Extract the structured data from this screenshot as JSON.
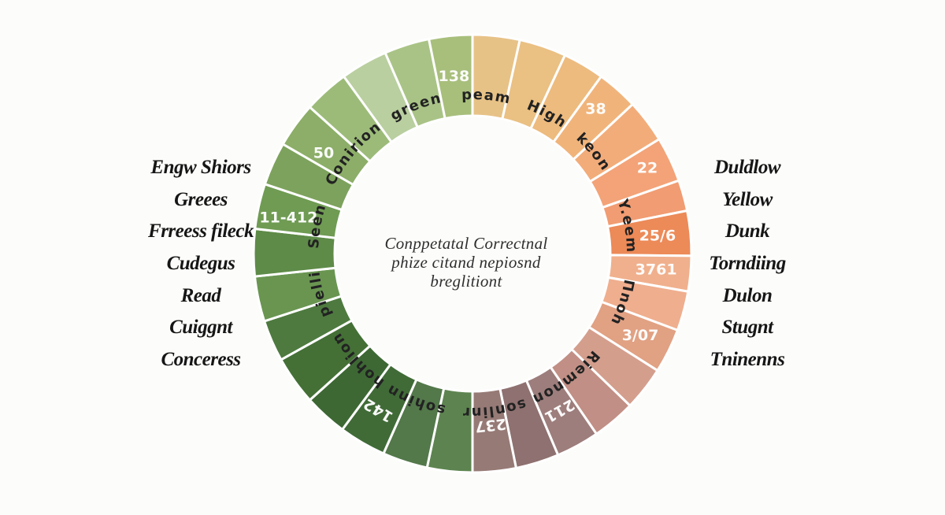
{
  "chart_data": {
    "type": "pie",
    "variant": "donut-color-wheel",
    "legend_position": "none",
    "center_text": [
      "Conppetatal Correctnal",
      "phize citand nepiosnd",
      "breglitiont"
    ],
    "segments": [
      {
        "start": 0,
        "end": 12.5,
        "color": "#e7c287"
      },
      {
        "start": 12.5,
        "end": 25,
        "color": "#eac083"
      },
      {
        "start": 25,
        "end": 36,
        "color": "#edbb7e"
      },
      {
        "start": 36,
        "end": 47,
        "color": "#f0b47b",
        "value": "38",
        "value_angle": 40.5,
        "value_radius": 241,
        "value_rotated": false
      },
      {
        "start": 47,
        "end": 58.5,
        "color": "#f2ac7a"
      },
      {
        "start": 58.5,
        "end": 70.5,
        "color": "#f3a377",
        "value": "22",
        "value_angle": 64,
        "value_radius": 247,
        "value_rotated": false
      },
      {
        "start": 70.5,
        "end": 78.7,
        "color": "#f19c72"
      },
      {
        "start": 78.7,
        "end": 90.6,
        "color": "#ec8a58",
        "value": "25/6",
        "value_angle": 84.5,
        "value_radius": 236,
        "value_rotated": false
      },
      {
        "start": 90.6,
        "end": 100,
        "color": "#f0b08d",
        "value": "3761",
        "value_angle": 95,
        "value_radius": 234,
        "value_rotated": false
      },
      {
        "start": 100,
        "end": 110.5,
        "color": "#efae8e"
      },
      {
        "start": 110.5,
        "end": 122.3,
        "color": "#e1a183",
        "value": "3/07",
        "value_angle": 116,
        "value_radius": 237,
        "value_rotated": false
      },
      {
        "start": 122.3,
        "end": 134,
        "color": "#d49e8d"
      },
      {
        "start": 134,
        "end": 145.5,
        "color": "#c18f85"
      },
      {
        "start": 145.5,
        "end": 157,
        "color": "#9d7e7c",
        "value": "211",
        "value_angle": 151,
        "value_radius": 228,
        "value_rotated": true
      },
      {
        "start": 157,
        "end": 168.5,
        "color": "#8e7170"
      },
      {
        "start": 168.5,
        "end": 180,
        "color": "#967a76",
        "value": "237",
        "value_angle": 174,
        "value_radius": 219,
        "value_rotated": true
      },
      {
        "start": 180,
        "end": 192,
        "color": "#5d8450"
      },
      {
        "start": 192,
        "end": 204,
        "color": "#53784a"
      },
      {
        "start": 204,
        "end": 216.5,
        "color": "#406b37",
        "value": "142",
        "value_angle": 211,
        "value_radius": 232,
        "value_rotated": true
      },
      {
        "start": 216.5,
        "end": 228,
        "color": "#3d6834"
      },
      {
        "start": 228,
        "end": 241,
        "color": "#447036"
      },
      {
        "start": 241,
        "end": 252,
        "color": "#4e7a3f"
      },
      {
        "start": 252,
        "end": 264,
        "color": "#699551"
      },
      {
        "start": 264,
        "end": 276.5,
        "color": "#5e8b48"
      },
      {
        "start": 276.5,
        "end": 288.5,
        "color": "#6f9b53",
        "value": "11-412",
        "value_angle": 281,
        "value_radius": 238,
        "value_rotated": false
      },
      {
        "start": 288.5,
        "end": 300,
        "color": "#7da25d"
      },
      {
        "start": 300,
        "end": 312,
        "color": "#8cae68",
        "value": "50",
        "value_angle": 304,
        "value_radius": 228,
        "value_rotated": false
      },
      {
        "start": 312,
        "end": 324,
        "color": "#9cbb79"
      },
      {
        "start": 324,
        "end": 336.5,
        "color": "#b9cf9f"
      },
      {
        "start": 336.5,
        "end": 348.5,
        "color": "#a9c386"
      },
      {
        "start": 348.5,
        "end": 360,
        "color": "#a8bf7c",
        "value": "138",
        "value_angle": 354,
        "value_radius": 226,
        "value_rotated": false
      }
    ],
    "ring_labels": [
      {
        "text": "Seen",
        "angle": 280
      },
      {
        "text": "Conirion",
        "angle": 310
      },
      {
        "text": "green",
        "angle": 339
      },
      {
        "text": "peam",
        "angle": 5
      },
      {
        "text": "High",
        "angle": 28
      },
      {
        "text": "keon",
        "angle": 50
      },
      {
        "text": "Y.eem",
        "angle": 80
      },
      {
        "text": "Пnoh",
        "angle": 108
      },
      {
        "text": "Riemnon",
        "angle": 143
      },
      {
        "text": "sonlinr",
        "angle": 172
      },
      {
        "text": "sohinn",
        "angle": 201
      },
      {
        "text": "hohlion",
        "angle": 227
      },
      {
        "text": "pielli",
        "angle": 255
      }
    ]
  },
  "left_labels": [
    "Engw Shiors",
    "Greees",
    "Frreess fileck",
    "Cudegus",
    "Read",
    "Cuiggnt",
    "Conceress"
  ],
  "right_labels": [
    "Duldlow",
    "Yellow",
    "Dunk",
    "Torndiing",
    "Dulon",
    "Stugnt",
    "Tninenns"
  ],
  "colors": {
    "background": "#fcfcfa",
    "divider": "#ffffff",
    "number_text": "#ffffff",
    "side_label_text": "#161616",
    "ring_label_text": "#222222",
    "center_text": "#2e2e2e"
  }
}
